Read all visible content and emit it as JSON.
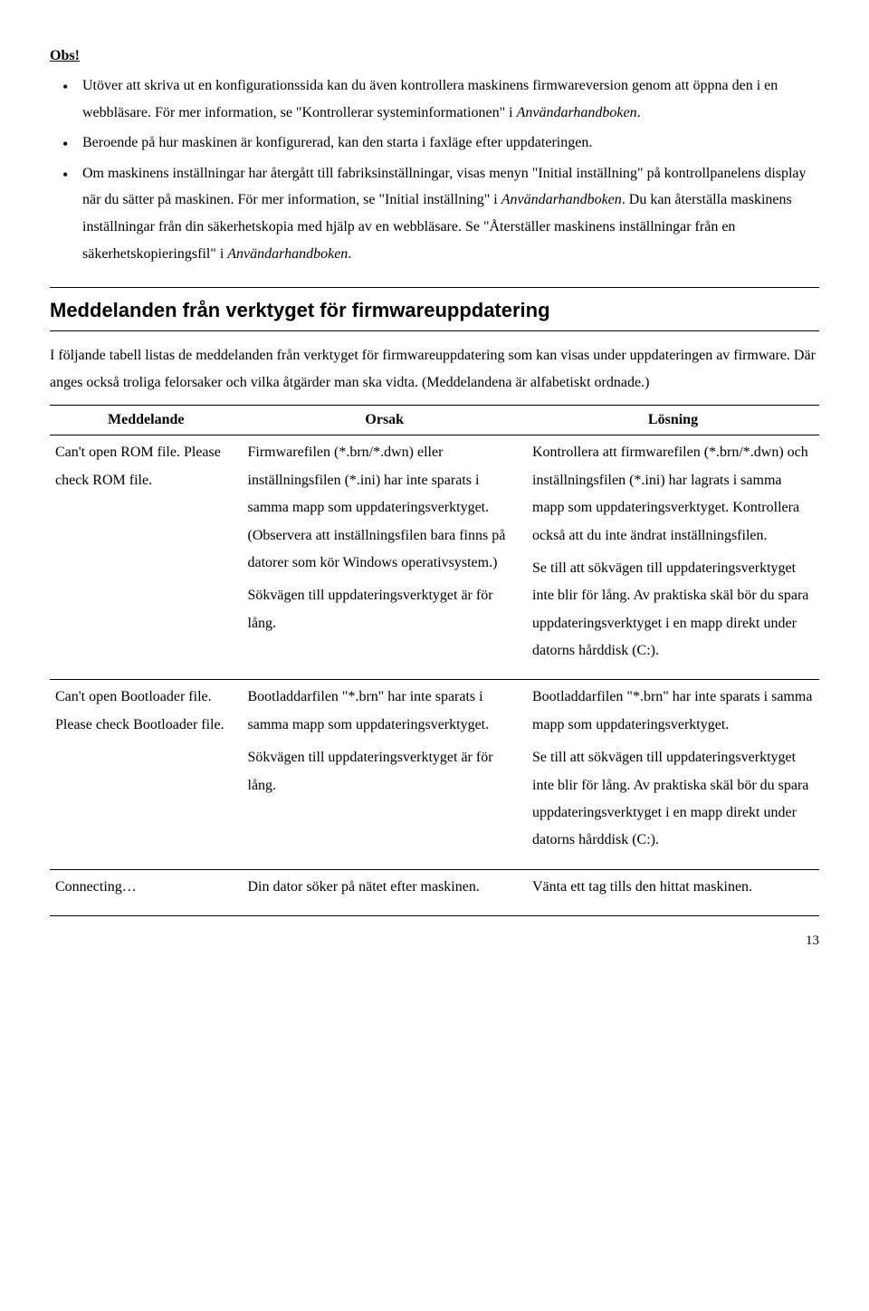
{
  "obs": {
    "title": "Obs!",
    "bullets": [
      {
        "pre": "Utöver att skriva ut en konfigurationssida kan du även kontrollera maskinens firmwareversion genom att öppna den i en webbläsare. För mer information, se \"Kontrollerar systeminformationen\" i ",
        "italic": "Användarhandboken",
        "post": "."
      },
      {
        "pre": "Beroende på hur maskinen är konfigurerad, kan den starta i faxläge efter uppdateringen.",
        "italic": "",
        "post": ""
      },
      {
        "pre": "Om maskinens inställningar har återgått till fabriksinställningar, visas menyn \"Initial inställning\" på kontrollpanelens display när du sätter på maskinen. För mer information, se \"Initial inställning\" i ",
        "italic": "Användarhandboken",
        "post": ". Du kan återställa maskinens inställningar från din säkerhetskopia med hjälp av en webbläsare. Se \"Återställer maskinens inställningar från en säkerhetskopieringsfil\" i ",
        "italic2": "Användarhandboken",
        "post2": "."
      }
    ]
  },
  "section": {
    "heading": "Meddelanden från verktyget för firmwareuppdatering",
    "intro": "I följande tabell listas de meddelanden från verktyget för firmwareuppdatering som kan visas under uppdateringen av firmware. Där anges också troliga felorsaker och vilka åtgärder man ska vidta. (Meddelandena är alfabetiskt ordnade.)"
  },
  "table": {
    "headers": {
      "c1": "Meddelande",
      "c2": "Orsak",
      "c3": "Lösning"
    },
    "rows": [
      {
        "msg": "Can't open ROM file. Please check ROM file.",
        "cause1": "Firmwarefilen (*.brn/*.dwn) eller inställningsfilen (*.ini) har inte sparats i samma mapp som uppdateringsverktyget. (Observera att inställningsfilen bara finns på datorer som kör Windows operativsystem.)",
        "cause2": "Sökvägen till uppdateringsverktyget är för lång.",
        "sol1": "Kontrollera att firmwarefilen (*.brn/*.dwn) och inställningsfilen (*.ini) har lagrats i samma mapp som uppdateringsverktyget. Kontrollera också att du inte ändrat inställningsfilen.",
        "sol2": "Se till att sökvägen till uppdateringsverktyget inte blir för lång. Av praktiska skäl bör du spara uppdateringsverktyget i en mapp direkt under datorns hårddisk (C:)."
      },
      {
        "msg": "Can't open Bootloader file. Please check Bootloader file.",
        "cause1": "Bootladdarfilen \"*.brn\" har inte sparats i samma mapp som uppdateringsverktyget.",
        "cause2": "Sökvägen till uppdateringsverktyget är för lång.",
        "sol1": "Bootladdarfilen \"*.brn\" har inte sparats i samma mapp som uppdateringsverktyget.",
        "sol2": "Se till att sökvägen till uppdateringsverktyget inte blir för lång. Av praktiska skäl bör du spara uppdateringsverktyget i en mapp direkt under datorns hårddisk (C:)."
      },
      {
        "msg": "Connecting…",
        "cause1": "Din dator söker på nätet efter maskinen.",
        "sol1": "Vänta ett tag tills den hittat maskinen."
      }
    ]
  },
  "page": "13"
}
